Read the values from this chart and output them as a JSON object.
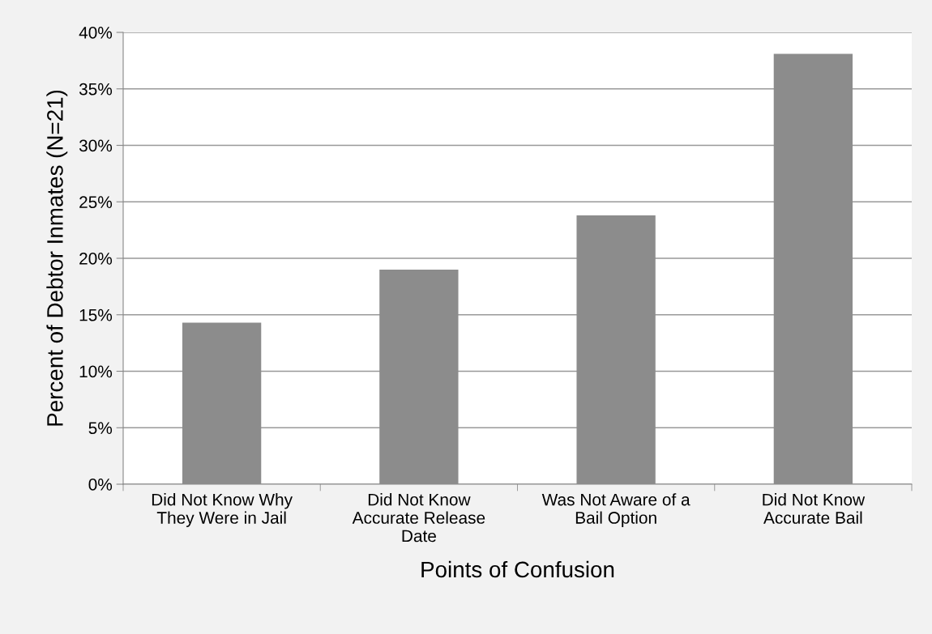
{
  "chart_data": {
    "type": "bar",
    "xlabel": "Points of Confusion",
    "ylabel": "Percent of Debtor Inmates (N=21)",
    "categories": [
      "Did Not Know Why They Were in Jail",
      "Did Not Know Accurate Release Date",
      "Was Not Aware of a Bail Option",
      "Did Not Know Accurate Bail"
    ],
    "values": [
      14.3,
      19.0,
      23.8,
      38.1
    ],
    "color": "#8c8c8c",
    "ylim": [
      0,
      40
    ],
    "yticks": [
      {
        "value": 0,
        "label": "0%"
      },
      {
        "value": 5,
        "label": "5%"
      },
      {
        "value": 10,
        "label": "10%"
      },
      {
        "value": 15,
        "label": "15%"
      },
      {
        "value": 20,
        "label": "20%"
      },
      {
        "value": 25,
        "label": "25%"
      },
      {
        "value": 30,
        "label": "30%"
      },
      {
        "value": 35,
        "label": "35%"
      },
      {
        "value": 40,
        "label": "40%"
      }
    ],
    "grid": "y"
  }
}
